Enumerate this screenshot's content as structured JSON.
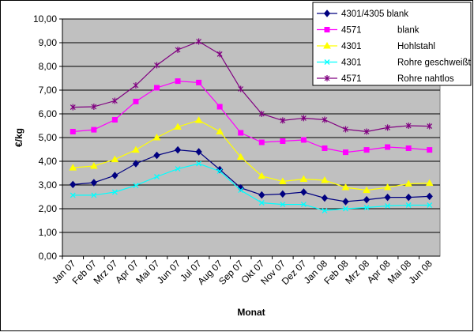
{
  "chart_data": {
    "type": "line",
    "title": "",
    "xlabel": "Monat",
    "ylabel": "€/kg",
    "ylim": [
      0,
      10
    ],
    "y_ticks": [
      "0,00",
      "1,00",
      "2,00",
      "3,00",
      "4,00",
      "5,00",
      "6,00",
      "7,00",
      "8,00",
      "9,00",
      "10,00"
    ],
    "grid": true,
    "legend_position": "top-right",
    "categories": [
      "Jan 07",
      "Feb 07",
      "Mrz 07",
      "Apr 07",
      "Mai 07",
      "Jun 07",
      "Jul 07",
      "Aug 07",
      "Sep 07",
      "Okt 07",
      "Nov 07",
      "Dez 07",
      "Jan 08",
      "Feb 08",
      "Mrz 08",
      "Apr 08",
      "Mai 08",
      "Jun 08"
    ],
    "series": [
      {
        "name": "4301/4305 blank",
        "legend_suffix": "",
        "color": "#000080",
        "marker": "diamond",
        "values": [
          3.02,
          3.1,
          3.4,
          3.9,
          4.25,
          4.48,
          4.4,
          3.65,
          2.88,
          2.58,
          2.62,
          2.7,
          2.45,
          2.3,
          2.38,
          2.48,
          2.48,
          2.52
        ]
      },
      {
        "name": "4571",
        "legend_suffix": "blank",
        "color": "#FF00FF",
        "marker": "square",
        "values": [
          5.25,
          5.33,
          5.75,
          6.52,
          7.1,
          7.38,
          7.32,
          6.3,
          5.2,
          4.8,
          4.85,
          4.9,
          4.55,
          4.38,
          4.48,
          4.6,
          4.55,
          4.48
        ]
      },
      {
        "name": "4301",
        "legend_suffix": "Hohlstahl",
        "color": "#FFFF00",
        "marker": "triangle",
        "values": [
          3.73,
          3.8,
          4.08,
          4.48,
          5.0,
          5.45,
          5.73,
          5.25,
          4.18,
          3.38,
          3.15,
          3.25,
          3.2,
          2.9,
          2.78,
          2.9,
          3.05,
          3.08
        ]
      },
      {
        "name": "4301",
        "legend_suffix": "Rohre geschweißt",
        "color": "#00FFFF",
        "marker": "x",
        "values": [
          2.57,
          2.57,
          2.7,
          2.98,
          3.35,
          3.68,
          3.9,
          3.58,
          2.78,
          2.25,
          2.18,
          2.18,
          1.92,
          2.0,
          2.05,
          2.12,
          2.15,
          2.15
        ]
      },
      {
        "name": "4571",
        "legend_suffix": "Rohre nahtlos",
        "color": "#800080",
        "marker": "star",
        "values": [
          6.28,
          6.3,
          6.55,
          7.2,
          8.05,
          8.7,
          9.05,
          8.52,
          7.05,
          6.0,
          5.72,
          5.82,
          5.75,
          5.35,
          5.25,
          5.42,
          5.5,
          5.48
        ]
      }
    ]
  }
}
